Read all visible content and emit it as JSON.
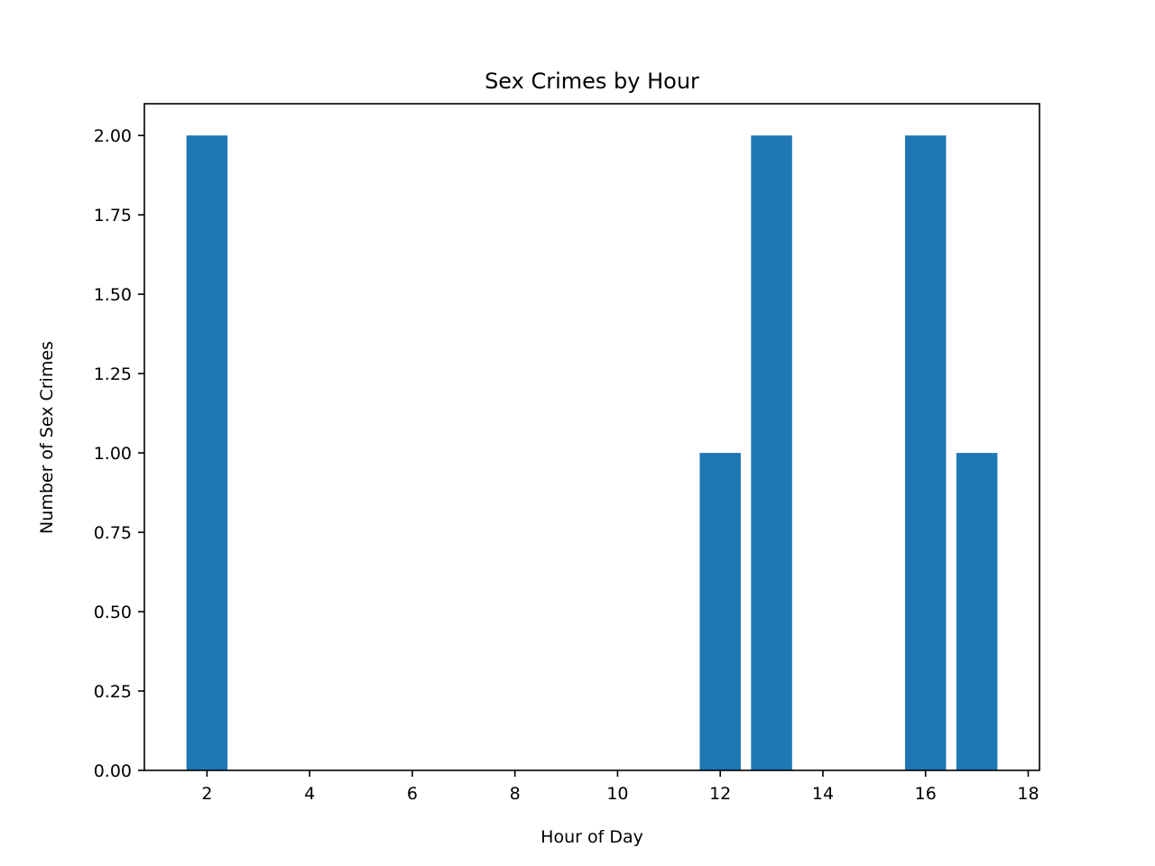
{
  "chart_data": {
    "type": "bar",
    "title": "Sex Crimes by Hour",
    "xlabel": "Hour of Day",
    "ylabel": "Number of Sex Crimes",
    "x": [
      2,
      12,
      13,
      16,
      17
    ],
    "values": [
      2,
      1,
      2,
      2,
      1
    ],
    "bar_width": 0.8,
    "xlim": [
      0.78,
      18.22
    ],
    "ylim": [
      0,
      2.1
    ],
    "xticks": [
      2,
      4,
      6,
      8,
      10,
      12,
      14,
      16,
      18
    ],
    "yticks": [
      "0.00",
      "0.25",
      "0.50",
      "0.75",
      "1.00",
      "1.25",
      "1.50",
      "1.75",
      "2.00"
    ],
    "bar_color": "#1f77b4",
    "grid": false,
    "legend": "none"
  }
}
